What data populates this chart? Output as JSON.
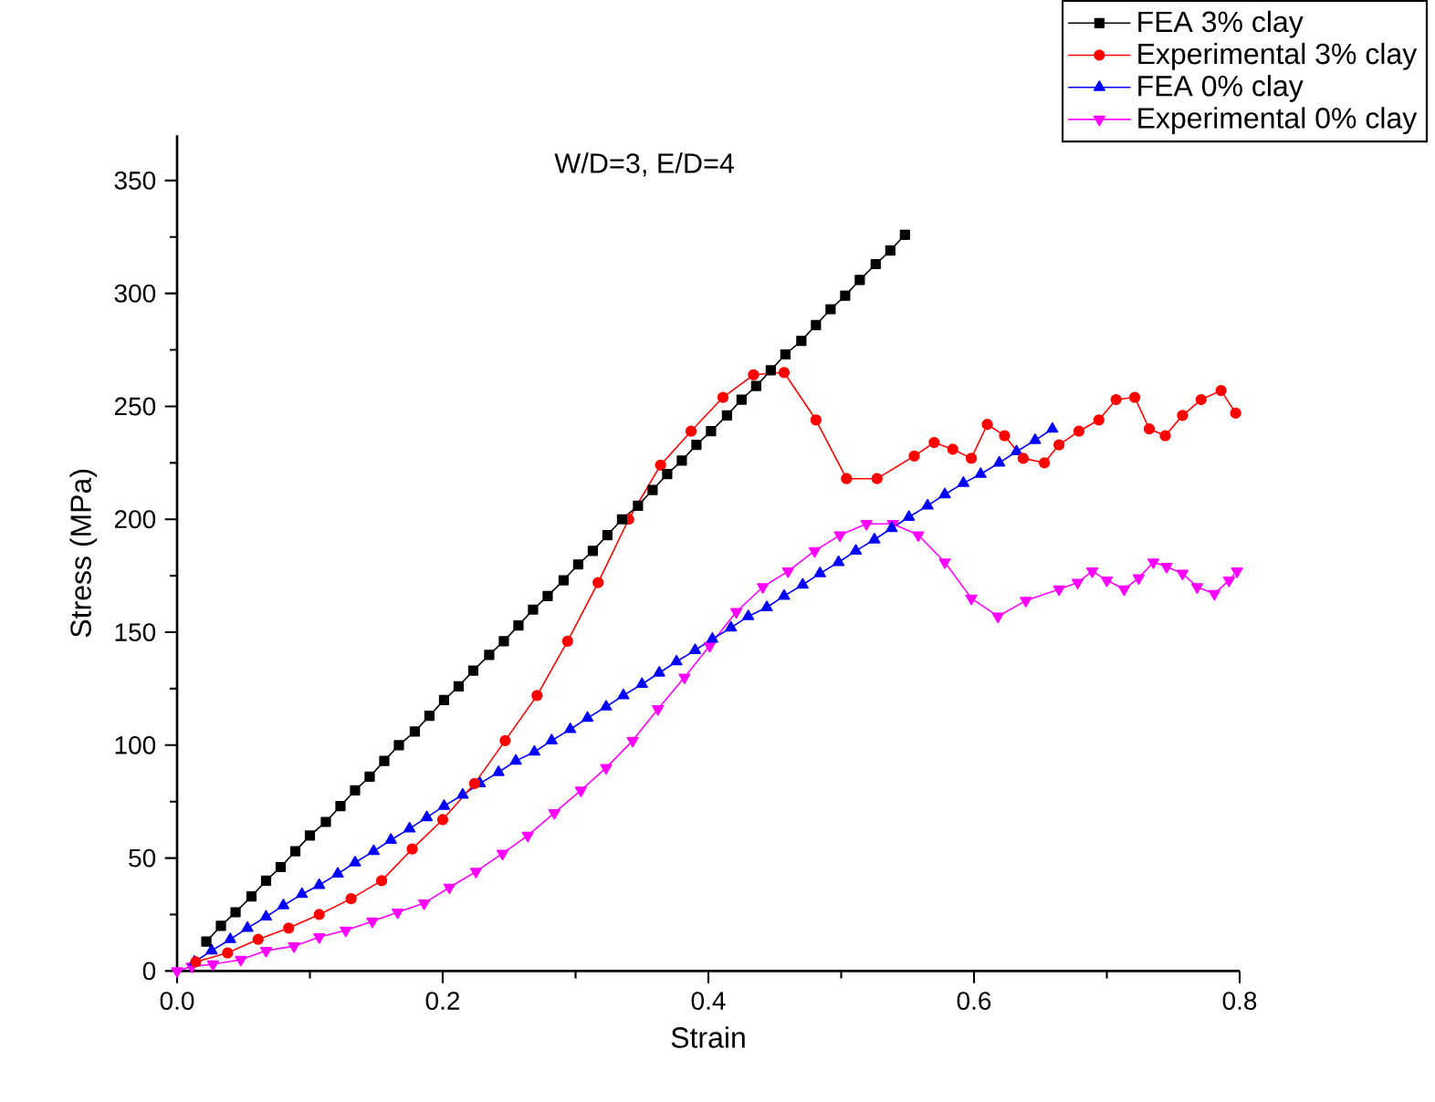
{
  "chart_data": {
    "type": "line",
    "title": "W/D=3, E/D=4",
    "xlabel": "Strain",
    "ylabel": "Stress (MPa)",
    "xlim": [
      0,
      0.8
    ],
    "ylim": [
      0,
      370
    ],
    "xticks": [
      {
        "value": 0,
        "label": "0.0"
      },
      {
        "value": 0.2,
        "label": "0.2"
      },
      {
        "value": 0.4,
        "label": "0.4"
      },
      {
        "value": 0.6,
        "label": "0.6"
      },
      {
        "value": 0.8,
        "label": "0.8"
      }
    ],
    "yticks": [
      0,
      50,
      100,
      150,
      200,
      250,
      300,
      350
    ],
    "legend": "top right",
    "grid": false,
    "line_style": "solid",
    "series": [
      {
        "name": "FEA 3% clay",
        "color": "#000000",
        "marker": "square",
        "x": [
          0.022,
          0.033,
          0.044,
          0.056,
          0.067,
          0.078,
          0.089,
          0.1,
          0.112,
          0.123,
          0.134,
          0.145,
          0.156,
          0.167,
          0.179,
          0.19,
          0.201,
          0.212,
          0.223,
          0.235,
          0.246,
          0.257,
          0.268,
          0.279,
          0.291,
          0.302,
          0.313,
          0.324,
          0.335,
          0.347,
          0.358,
          0.369,
          0.38,
          0.391,
          0.402,
          0.414,
          0.425,
          0.436,
          0.447,
          0.458,
          0.47,
          0.481,
          0.492,
          0.503,
          0.514,
          0.526,
          0.537,
          0.548
        ],
        "values": [
          13,
          20,
          26,
          33,
          40,
          46,
          53,
          60,
          66,
          73,
          80,
          86,
          93,
          100,
          106,
          113,
          120,
          126,
          133,
          140,
          146,
          153,
          160,
          166,
          173,
          180,
          186,
          193,
          200,
          206,
          213,
          220,
          226,
          233,
          239,
          246,
          253,
          259,
          266,
          273,
          279,
          286,
          293,
          299,
          306,
          313,
          319,
          326
        ]
      },
      {
        "name": "Experimental 3% clay",
        "color": "#ff0000",
        "marker": "circle",
        "x": [
          0.014,
          0.038,
          0.061,
          0.084,
          0.107,
          0.131,
          0.154,
          0.177,
          0.2,
          0.224,
          0.247,
          0.271,
          0.294,
          0.317,
          0.34,
          0.364,
          0.387,
          0.411,
          0.434,
          0.457,
          0.481,
          0.504,
          0.527,
          0.555,
          0.57,
          0.584,
          0.598,
          0.61,
          0.623,
          0.637,
          0.653,
          0.664,
          0.679,
          0.694,
          0.707,
          0.721,
          0.732,
          0.744,
          0.757,
          0.771,
          0.786,
          0.797
        ],
        "values": [
          4,
          8,
          14,
          19,
          25,
          32,
          40,
          54,
          67,
          83,
          102,
          122,
          146,
          172,
          200,
          224,
          239,
          254,
          264,
          265,
          244,
          218,
          218,
          228,
          234,
          231,
          227,
          242,
          237,
          227,
          225,
          233,
          239,
          244,
          253,
          254,
          240,
          237,
          246,
          253,
          257,
          247
        ]
      },
      {
        "name": "FEA 0% clay",
        "color": "#0000ff",
        "marker": "triangle",
        "x": [
          0.013,
          0.026,
          0.04,
          0.053,
          0.067,
          0.08,
          0.094,
          0.107,
          0.121,
          0.134,
          0.148,
          0.161,
          0.175,
          0.188,
          0.201,
          0.215,
          0.228,
          0.242,
          0.255,
          0.269,
          0.282,
          0.296,
          0.309,
          0.323,
          0.336,
          0.35,
          0.363,
          0.376,
          0.39,
          0.403,
          0.417,
          0.43,
          0.444,
          0.457,
          0.471,
          0.484,
          0.498,
          0.511,
          0.525,
          0.538,
          0.551,
          0.565,
          0.578,
          0.592,
          0.605,
          0.619,
          0.632,
          0.646,
          0.659
        ],
        "values": [
          4,
          9,
          14,
          19,
          24,
          29,
          34,
          38,
          43,
          48,
          53,
          58,
          63,
          68,
          73,
          78,
          83,
          88,
          93,
          97,
          102,
          107,
          112,
          117,
          122,
          127,
          132,
          137,
          142,
          147,
          152,
          157,
          161,
          166,
          171,
          176,
          181,
          186,
          191,
          196,
          201,
          206,
          211,
          216,
          220,
          225,
          230,
          235,
          240
        ]
      },
      {
        "name": "Experimental 0% clay",
        "color": "#ff00ff",
        "marker": "triangle-down",
        "x": [
          0.0,
          0.011,
          0.027,
          0.048,
          0.067,
          0.088,
          0.107,
          0.127,
          0.147,
          0.166,
          0.186,
          0.205,
          0.225,
          0.245,
          0.264,
          0.284,
          0.304,
          0.323,
          0.343,
          0.362,
          0.382,
          0.401,
          0.421,
          0.441,
          0.46,
          0.48,
          0.499,
          0.519,
          0.539,
          0.558,
          0.578,
          0.598,
          0.618,
          0.639,
          0.664,
          0.678,
          0.689,
          0.7,
          0.713,
          0.724,
          0.735,
          0.745,
          0.757,
          0.768,
          0.781,
          0.792,
          0.798
        ],
        "values": [
          0,
          2,
          3,
          5,
          9,
          11,
          15,
          18,
          22,
          26,
          30,
          37,
          44,
          52,
          60,
          70,
          80,
          90,
          102,
          116,
          130,
          144,
          159,
          170,
          177,
          186,
          193,
          198,
          198,
          193,
          181,
          165,
          157,
          164,
          169,
          172,
          177,
          173,
          169,
          174,
          181,
          179,
          176,
          170,
          167,
          173,
          177
        ]
      }
    ]
  }
}
